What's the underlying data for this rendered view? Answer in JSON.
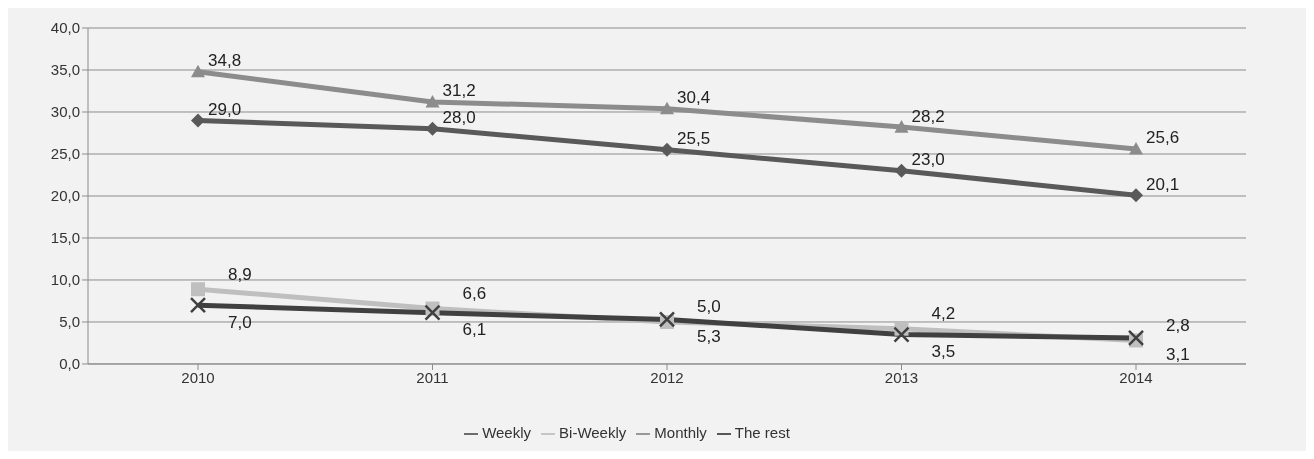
{
  "chart_data": {
    "type": "line",
    "categories": [
      "2010",
      "2011",
      "2012",
      "2013",
      "2014"
    ],
    "series": [
      {
        "name": "Weekly",
        "color": "#595959",
        "marker": "diamond",
        "values": [
          29.0,
          28.0,
          25.5,
          23.0,
          20.1
        ],
        "value_labels": [
          "29,0",
          "28,0",
          "25,5",
          "23,0",
          "20,1"
        ]
      },
      {
        "name": "Bi-Weekly",
        "color": "#bfbfbf",
        "marker": "square",
        "values": [
          8.9,
          6.6,
          5.0,
          4.2,
          2.8
        ],
        "value_labels": [
          "8,9",
          "6,6",
          "5,0",
          "4,2",
          "2,8"
        ]
      },
      {
        "name": "Monthly",
        "color": "#8c8c8c",
        "marker": "triangle",
        "values": [
          34.8,
          31.2,
          30.4,
          28.2,
          25.6
        ],
        "value_labels": [
          "34,8",
          "31,2",
          "30,4",
          "28,2",
          "25,6"
        ]
      },
      {
        "name": "The rest",
        "color": "#404040",
        "marker": "cross",
        "values": [
          7.0,
          6.1,
          5.3,
          3.5,
          3.1
        ],
        "value_labels": [
          "7,0",
          "6,1",
          "5,3",
          "3,5",
          "3,1"
        ]
      }
    ],
    "ylim": [
      0,
      40
    ],
    "yticks": [
      {
        "value": 0,
        "label": "0,0"
      },
      {
        "value": 5,
        "label": "5,0"
      },
      {
        "value": 10,
        "label": "10,0"
      },
      {
        "value": 15,
        "label": "15,0"
      },
      {
        "value": 20,
        "label": "20,0"
      },
      {
        "value": 25,
        "label": "25,0"
      },
      {
        "value": 30,
        "label": "30,0"
      },
      {
        "value": 35,
        "label": "35,0"
      },
      {
        "value": 40,
        "label": "40,0"
      }
    ],
    "grid": "y",
    "legend": "bottom",
    "line_style": "solid"
  }
}
